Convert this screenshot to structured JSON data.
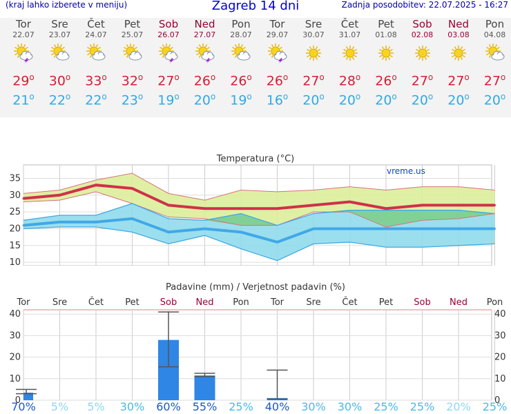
{
  "header": {
    "left_note": "(kraj lahko izberete v meniju)",
    "title": "Zagreb 14 dni",
    "updated": "Zadnja posodobitev: 22.07.2025 - 16:27"
  },
  "days": [
    {
      "name": "Tor",
      "date": "22.07",
      "weekend": false,
      "icon": "sun-cloud-storm-icon",
      "tmax": "29",
      "tmin": "21"
    },
    {
      "name": "Sre",
      "date": "23.07",
      "weekend": false,
      "icon": "sun-cloud-icon",
      "tmax": "30",
      "tmin": "22"
    },
    {
      "name": "Čet",
      "date": "24.07",
      "weekend": false,
      "icon": "sun-cloud-icon",
      "tmax": "33",
      "tmin": "22"
    },
    {
      "name": "Pet",
      "date": "25.07",
      "weekend": false,
      "icon": "sun-cloud-icon",
      "tmax": "32",
      "tmin": "23"
    },
    {
      "name": "Sob",
      "date": "26.07",
      "weekend": true,
      "icon": "sun-cloud-storm-icon",
      "tmax": "27",
      "tmin": "19"
    },
    {
      "name": "Ned",
      "date": "27.07",
      "weekend": true,
      "icon": "sun-cloud-storm-icon",
      "tmax": "26",
      "tmin": "20"
    },
    {
      "name": "Pon",
      "date": "28.07",
      "weekend": false,
      "icon": "sun-cloud-icon",
      "tmax": "26",
      "tmin": "19"
    },
    {
      "name": "Tor",
      "date": "29.07",
      "weekend": false,
      "icon": "sun-cloud-storm-icon",
      "tmax": "26",
      "tmin": "16"
    },
    {
      "name": "Sre",
      "date": "30.07",
      "weekend": false,
      "icon": "sun-icon",
      "tmax": "27",
      "tmin": "20"
    },
    {
      "name": "Čet",
      "date": "31.07",
      "weekend": false,
      "icon": "sun-icon",
      "tmax": "28",
      "tmin": "20"
    },
    {
      "name": "Pet",
      "date": "01.08",
      "weekend": false,
      "icon": "sun-icon",
      "tmax": "26",
      "tmin": "20"
    },
    {
      "name": "Sob",
      "date": "02.08",
      "weekend": true,
      "icon": "sun-icon",
      "tmax": "27",
      "tmin": "20"
    },
    {
      "name": "Ned",
      "date": "03.08",
      "weekend": true,
      "icon": "sun-icon",
      "tmax": "27",
      "tmin": "20"
    },
    {
      "name": "Pon",
      "date": "04.08",
      "weekend": false,
      "icon": "sun-cloud-icon",
      "tmax": "27",
      "tmin": "20"
    }
  ],
  "degree_symbol": "o",
  "colors": {
    "max_line": "#d1304a",
    "max_band": "#dcee9a",
    "min_line": "#41a8e6",
    "min_band": "#90dcec",
    "overlap_band": "#7ccf8a",
    "precip_bar": "#2f86e4",
    "weekend_text": "#990033"
  },
  "chart_data": [
    {
      "type": "line",
      "title": "Temperatura (°C)",
      "watermark": "vreme.us",
      "x": [
        "Tor",
        "Sre",
        "Čet",
        "Pet",
        "Sob",
        "Ned",
        "Pon",
        "Tor",
        "Sre",
        "Čet",
        "Pet",
        "Sob",
        "Ned",
        "Pon"
      ],
      "ylim": [
        9,
        39
      ],
      "yticks": [
        10,
        15,
        20,
        25,
        30,
        35
      ],
      "grid": true,
      "series": [
        {
          "name": "max",
          "values": [
            29,
            30,
            33,
            32,
            27,
            26,
            26,
            26,
            27,
            28,
            26,
            27,
            27,
            27
          ],
          "band_low": [
            28,
            28.5,
            31,
            27.5,
            23.5,
            23,
            21,
            21,
            25,
            25,
            20.5,
            22.5,
            23,
            24.5
          ],
          "band_high": [
            30.5,
            31.5,
            34.5,
            36.5,
            30.5,
            28.5,
            31.5,
            31,
            31.5,
            32.5,
            31.5,
            32.5,
            32.5,
            31.5
          ]
        },
        {
          "name": "min",
          "values": [
            21,
            22,
            22,
            23,
            19,
            20,
            19,
            16,
            20,
            20,
            20,
            20,
            20,
            20
          ],
          "band_low": [
            20,
            20.5,
            20.5,
            19,
            15.5,
            18,
            14,
            10.5,
            15.5,
            16,
            14.5,
            14.5,
            15,
            15.5
          ],
          "band_high": [
            22.5,
            24,
            24,
            27.5,
            23,
            22.5,
            24.5,
            21,
            24.5,
            25.5,
            25.5,
            25.5,
            25.5,
            24.5
          ]
        }
      ]
    },
    {
      "type": "bar",
      "title": "Padavine (mm) / Verjetnost padavin (%)",
      "categories": [
        "Tor",
        "Sre",
        "Čet",
        "Pet",
        "Sob",
        "Ned",
        "Pon",
        "Tor",
        "Sre",
        "Čet",
        "Pet",
        "Sob",
        "Ned",
        "Pon"
      ],
      "weekend": [
        false,
        false,
        false,
        false,
        true,
        true,
        false,
        false,
        false,
        false,
        false,
        true,
        true,
        false
      ],
      "ylim": [
        0,
        42
      ],
      "yticks": [
        0,
        10,
        20,
        30,
        40
      ],
      "values": [
        3.5,
        0,
        0,
        0,
        28,
        11.5,
        0,
        1,
        0,
        0,
        0,
        0,
        0,
        0
      ],
      "range_low": [
        3,
        0,
        0,
        0,
        15.5,
        11,
        0,
        0.5,
        0,
        0,
        0,
        0,
        0,
        0
      ],
      "range_high": [
        5,
        0,
        0,
        0,
        41,
        12.5,
        0,
        14,
        0,
        0,
        0,
        0,
        0,
        0
      ],
      "probability": [
        "70%",
        "5%",
        "5%",
        "30%",
        "60%",
        "55%",
        "25%",
        "40%",
        "30%",
        "30%",
        "25%",
        "25%",
        "20%",
        "25%"
      ]
    }
  ]
}
